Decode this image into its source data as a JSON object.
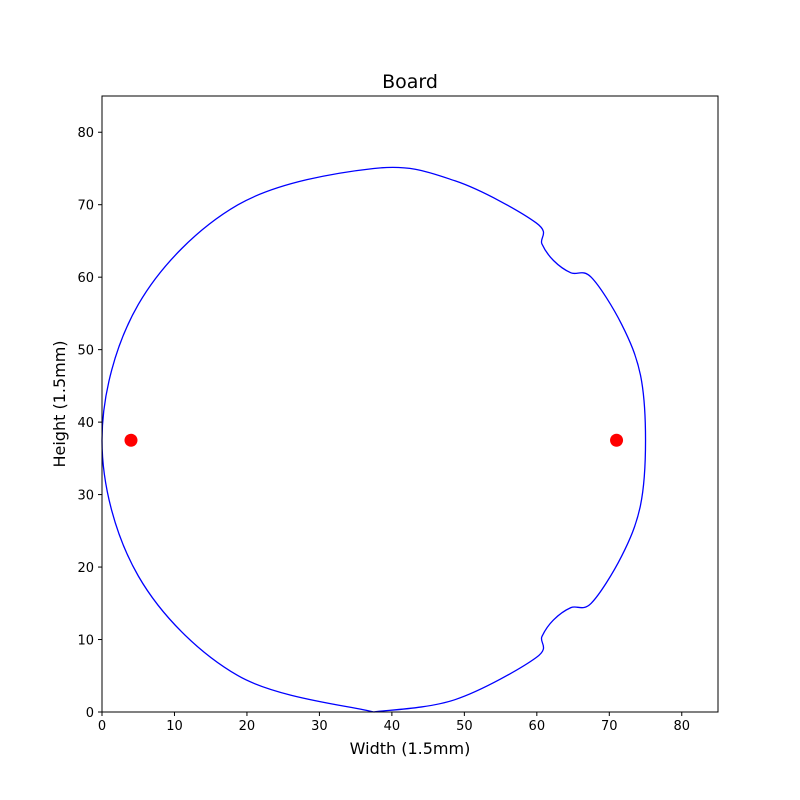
{
  "chart_data": {
    "type": "line",
    "title": "Board",
    "xlabel": "Width (1.5mm)",
    "ylabel": "Height (1.5mm)",
    "xlim": [
      0,
      85
    ],
    "ylim": [
      0,
      85
    ],
    "xticks": [
      0,
      10,
      20,
      30,
      40,
      50,
      60,
      70,
      80
    ],
    "yticks": [
      0,
      10,
      20,
      30,
      40,
      50,
      60,
      70,
      80
    ],
    "grid": false,
    "legend": "none",
    "series": [
      {
        "kind": "outline",
        "color": "#0000ff",
        "points": [
          [
            37.5,
            0.0
          ],
          [
            48.7,
            1.7
          ],
          [
            59.9,
            7.5
          ],
          [
            60.7,
            10.4
          ],
          [
            62.3,
            12.7
          ],
          [
            64.7,
            14.4
          ],
          [
            67.5,
            15.0
          ],
          [
            71.7,
            21.5
          ],
          [
            74.3,
            28.5
          ],
          [
            75.0,
            37.5
          ],
          [
            74.3,
            46.5
          ],
          [
            71.7,
            53.5
          ],
          [
            67.5,
            60.0
          ],
          [
            64.7,
            60.6
          ],
          [
            62.3,
            62.3
          ],
          [
            60.7,
            64.6
          ],
          [
            59.9,
            67.5
          ],
          [
            48.7,
            73.3
          ],
          [
            37.5,
            75.0
          ],
          [
            18.75,
            69.98
          ],
          [
            5.02,
            56.25
          ],
          [
            0.0,
            37.5
          ],
          [
            5.02,
            18.75
          ],
          [
            18.75,
            5.02
          ],
          [
            37.5,
            0.0
          ]
        ]
      },
      {
        "kind": "markers",
        "color": "#ff0000",
        "points": [
          [
            4,
            37.5
          ],
          [
            71,
            37.5
          ]
        ]
      }
    ]
  }
}
